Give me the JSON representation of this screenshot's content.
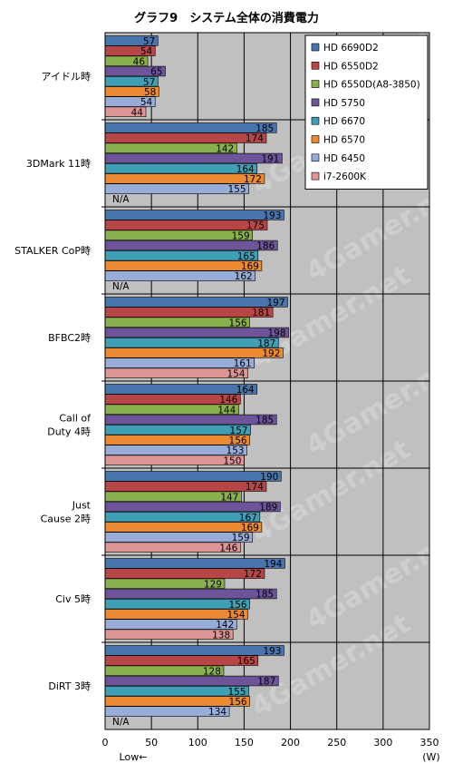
{
  "chart_data": {
    "type": "bar",
    "orientation": "horizontal",
    "title": "グラフ9　システム全体の消費電力",
    "categories": [
      [
        "アイドル時"
      ],
      [
        "3DMark 11時"
      ],
      [
        "STALKER CoP時"
      ],
      [
        "BFBC2時"
      ],
      [
        "Call of",
        "Duty 4時"
      ],
      [
        "Just",
        "Cause 2時"
      ],
      [
        "Civ 5時"
      ],
      [
        "DiRT 3時"
      ]
    ],
    "series": [
      {
        "name": "HD 6690D2",
        "color": "#4a74ad",
        "values": [
          57,
          185,
          193,
          197,
          164,
          190,
          194,
          193
        ]
      },
      {
        "name": "HD 6550D2",
        "color": "#b84646",
        "values": [
          54,
          174,
          175,
          181,
          146,
          174,
          172,
          165
        ]
      },
      {
        "name": "HD 6550D(A8-3850)",
        "color": "#8ab04d",
        "values": [
          46,
          142,
          159,
          156,
          144,
          147,
          129,
          128
        ]
      },
      {
        "name": "HD 5750",
        "color": "#6e559a",
        "values": [
          65,
          191,
          186,
          198,
          185,
          189,
          185,
          187
        ]
      },
      {
        "name": "HD 6670",
        "color": "#3f9fb4",
        "values": [
          57,
          164,
          165,
          187,
          157,
          167,
          156,
          155
        ]
      },
      {
        "name": "HD 6570",
        "color": "#ec8a33",
        "values": [
          58,
          172,
          169,
          192,
          156,
          169,
          154,
          156
        ]
      },
      {
        "name": "HD 6450",
        "color": "#97add8",
        "values": [
          54,
          155,
          162,
          161,
          153,
          159,
          142,
          134
        ]
      },
      {
        "name": "i7-2600K",
        "color": "#de9596",
        "values": [
          44,
          null,
          null,
          154,
          150,
          146,
          138,
          null
        ]
      }
    ],
    "missing_label": "N/A",
    "xlim": [
      0,
      350
    ],
    "xticks": [
      0,
      50,
      100,
      150,
      200,
      250,
      300,
      350
    ],
    "xlabel": "(W)",
    "note": "Low←",
    "grid": true,
    "legend": "top-right",
    "watermark": "4Gamer.net",
    "colors": {
      "plot_bg": "#c0c0c0",
      "grid": "#000000",
      "page_bg": "#ffffff"
    }
  }
}
